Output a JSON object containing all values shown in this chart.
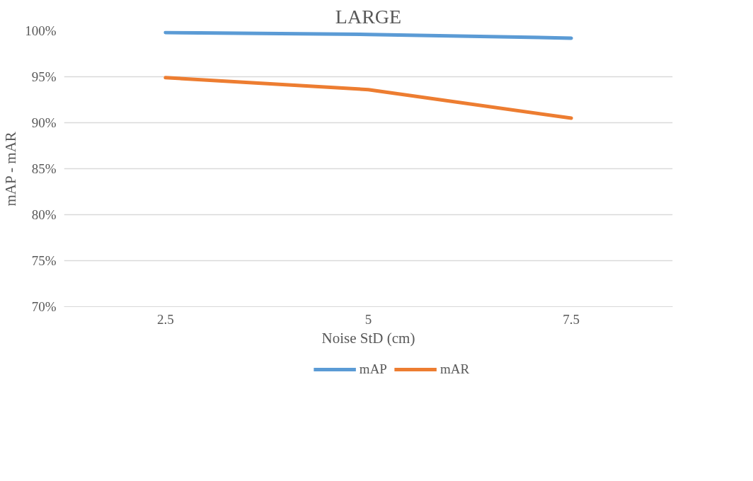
{
  "chart_data": {
    "type": "line",
    "title": "LARGE",
    "xlabel": "Noise StD (cm)",
    "ylabel": "mAP - mAR",
    "categories": [
      "2.5",
      "5",
      "7.5"
    ],
    "series": [
      {
        "name": "mAP",
        "color": "#5b9bd5",
        "values": [
          99.8,
          99.6,
          99.2
        ]
      },
      {
        "name": "mAR",
        "color": "#ed7d31",
        "values": [
          94.9,
          93.6,
          90.5
        ]
      }
    ],
    "ylim": [
      70,
      100
    ],
    "yticks": [
      {
        "value": 70,
        "label": "70%"
      },
      {
        "value": 75,
        "label": "75%"
      },
      {
        "value": 80,
        "label": "80%"
      },
      {
        "value": 85,
        "label": "85%"
      },
      {
        "value": 90,
        "label": "90%"
      },
      {
        "value": 95,
        "label": "95%"
      },
      {
        "value": 100,
        "label": "100%"
      }
    ],
    "grid": "y",
    "legend": "bottom",
    "marker": "none",
    "line_style": "solid"
  }
}
